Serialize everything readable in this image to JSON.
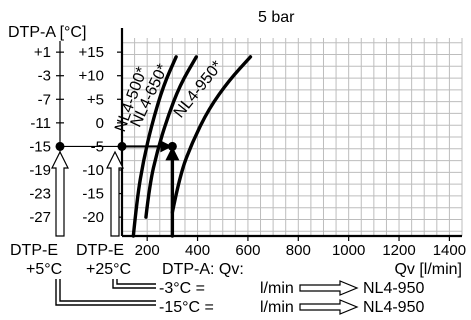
{
  "chart_data": {
    "type": "line",
    "title": "5 bar",
    "ylabel": "DTP-A [°C]",
    "xlabel": "Qv [l/min]",
    "x_ticks": [
      200,
      400,
      600,
      800,
      1000,
      1200,
      1400
    ],
    "xlim": [
      100,
      1450
    ],
    "y_ticks_dtpe5": [
      "+1",
      "-3",
      "-7",
      "-11",
      "-15",
      "-19",
      "-23",
      "-27"
    ],
    "y_ticks_dtpe25": [
      "+15",
      "+10",
      "+5",
      "0",
      "-5",
      "-10",
      "-15",
      "-20"
    ],
    "ylim_dtpe25": [
      -24,
      18
    ],
    "series": [
      {
        "name": "NL4-500*",
        "points": [
          [
            145,
            -24
          ],
          [
            160,
            -16
          ],
          [
            185,
            -8
          ],
          [
            220,
            0
          ],
          [
            265,
            8
          ],
          [
            315,
            14
          ]
        ]
      },
      {
        "name": "NL4-650*",
        "points": [
          [
            195,
            -20
          ],
          [
            210,
            -13
          ],
          [
            240,
            -6
          ],
          [
            280,
            1
          ],
          [
            330,
            8
          ],
          [
            395,
            14
          ]
        ]
      },
      {
        "name": "NL4-950*",
        "points": [
          [
            300,
            -19
          ],
          [
            330,
            -11
          ],
          [
            380,
            -4
          ],
          [
            445,
            3
          ],
          [
            525,
            9
          ],
          [
            610,
            14
          ]
        ]
      }
    ],
    "example": {
      "dtpa_value": -5,
      "dtpa_alt_value": -15,
      "qv_value": 300
    }
  },
  "footer": {
    "dtpe_label_1": "DTP-E",
    "dtpe_label_2": "DTP-E",
    "dtpe_value_1": "+5°C",
    "dtpe_value_2": "+25°C",
    "dtpa_qv": "DTP-A: Qv:",
    "qv_unit_label": "Qv [l/min]",
    "row1_temp": "-3°C =",
    "row1_unit": "l/min",
    "row1_model": "NL4-950",
    "row2_temp": "-15°C =",
    "row2_unit": "l/min",
    "row2_model": "NL4-950"
  }
}
